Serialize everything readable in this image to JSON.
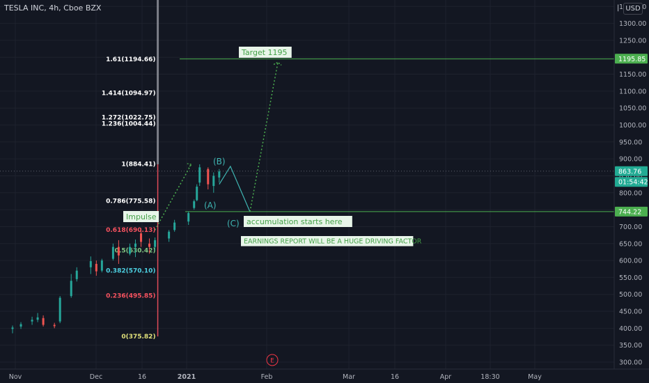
{
  "header": {
    "title": "TESLA INC, 4h, Cboe BZX",
    "currency": "USD",
    "scale_marker": "|"
  },
  "colors": {
    "background": "#131722",
    "grid": "#1e222d",
    "up_candle": "#26a69a",
    "down_candle": "#ef5350",
    "axis_text": "#b2b5be",
    "green_line": "#4caf50",
    "teal_line": "#22ab94",
    "fib_gray": "#787b86",
    "label_green": "#4caf50",
    "badge_gray": "#2a2e39",
    "annotation_cyan": "#3fb5b2"
  },
  "chart_data": {
    "type": "candlestick",
    "title": "TESLA INC, 4h, Cboe BZX",
    "y_axis": {
      "ticks": [
        "1350.00",
        "1300.00",
        "1250.00",
        "1200.00",
        "1150.00",
        "1100.00",
        "1050.00",
        "1000.00",
        "950.00",
        "900.00",
        "850.00",
        "800.00",
        "750.00",
        "700.00",
        "650.00",
        "600.00",
        "550.00",
        "500.00",
        "450.00",
        "400.00",
        "350.00",
        "300.00"
      ],
      "range": [
        291,
        1360
      ]
    },
    "x_axis": {
      "ticks": [
        "Nov",
        "Dec",
        "16",
        "2021",
        "Feb",
        "Mar",
        "16",
        "Apr",
        "18:30",
        "May"
      ],
      "bold_ticks": [
        "2021"
      ]
    },
    "price_labels": [
      {
        "value": 1195.85,
        "text": "1195.85",
        "style": "green"
      },
      {
        "value": 863.76,
        "text": "863.76",
        "style": "teal"
      },
      {
        "value": 832,
        "text": "01:54:42",
        "style": "teal"
      },
      {
        "value": 744.22,
        "text": "744.22",
        "style": "green"
      }
    ],
    "horizontal_lines": [
      {
        "name": "target-line",
        "value": 1195,
        "start_date": "2020-12-31"
      },
      {
        "name": "support-line",
        "value": 744.22,
        "start_date": "2020-12-31"
      },
      {
        "name": "current-price-line",
        "value": 863.76,
        "dotted": true
      }
    ],
    "fibonacci": {
      "date": "2020-12-24",
      "levels": [
        {
          "text": "1.61(1194.66)",
          "value": 1194.66,
          "color": "white"
        },
        {
          "text": "1.414(1094.97)",
          "value": 1094.97,
          "color": "white"
        },
        {
          "text": "1.272(1022.75)",
          "value": 1022.75,
          "color": "white"
        },
        {
          "text": "1.236(1004.44)",
          "value": 1004.44,
          "color": "white"
        },
        {
          "text": "1(884.41)",
          "value": 884.41,
          "color": "white"
        },
        {
          "text": "0.786(775.58)",
          "value": 775.58,
          "color": "white"
        },
        {
          "text": "0.618(690.13)",
          "value": 690.13,
          "color": "red"
        },
        {
          "text": "0.5(630.42)",
          "value": 630.42,
          "color": "green"
        },
        {
          "text": "0.382(570.10)",
          "value": 570.1,
          "color": "teal"
        },
        {
          "text": "0.236(495.85)",
          "value": 495.85,
          "color": "red"
        },
        {
          "text": "0(375.82)",
          "value": 375.82,
          "color": "yellow"
        }
      ]
    },
    "labels_text": {
      "target": "Target 1195",
      "impulse": "Impulse",
      "accumulation": "accumulation starts here",
      "earnings": "EARNINGS REPORT WILL BE A HUGE DRIVING FACTOR",
      "wave_a": "(A)",
      "wave_b": "(B)",
      "wave_c": "(C)",
      "earnings_marker": "E"
    },
    "candles": [
      {
        "date": "2020-11-02",
        "o": 398,
        "h": 408,
        "l": 385,
        "c": 402
      },
      {
        "date": "2020-11-05",
        "o": 405,
        "h": 418,
        "l": 398,
        "c": 412
      },
      {
        "date": "2020-11-09",
        "o": 420,
        "h": 434,
        "l": 410,
        "c": 425
      },
      {
        "date": "2020-11-11",
        "o": 425,
        "h": 445,
        "l": 418,
        "c": 432
      },
      {
        "date": "2020-11-13",
        "o": 430,
        "h": 438,
        "l": 405,
        "c": 410
      },
      {
        "date": "2020-11-17",
        "o": 410,
        "h": 416,
        "l": 400,
        "c": 406
      },
      {
        "date": "2020-11-19",
        "o": 420,
        "h": 495,
        "l": 415,
        "c": 490
      },
      {
        "date": "2020-11-23",
        "o": 495,
        "h": 560,
        "l": 490,
        "c": 540
      },
      {
        "date": "2020-11-25",
        "o": 545,
        "h": 580,
        "l": 538,
        "c": 570
      },
      {
        "date": "2020-11-30",
        "o": 580,
        "h": 612,
        "l": 560,
        "c": 598
      },
      {
        "date": "2020-12-02",
        "o": 590,
        "h": 600,
        "l": 555,
        "c": 568
      },
      {
        "date": "2020-12-04",
        "o": 570,
        "h": 605,
        "l": 565,
        "c": 600
      },
      {
        "date": "2020-12-08",
        "o": 605,
        "h": 650,
        "l": 600,
        "c": 640
      },
      {
        "date": "2020-12-10",
        "o": 640,
        "h": 660,
        "l": 590,
        "c": 615
      },
      {
        "date": "2020-12-14",
        "o": 620,
        "h": 650,
        "l": 615,
        "c": 640
      },
      {
        "date": "2020-12-16",
        "o": 640,
        "h": 662,
        "l": 610,
        "c": 650
      },
      {
        "date": "2020-12-18",
        "o": 680,
        "h": 695,
        "l": 640,
        "c": 655
      },
      {
        "date": "2020-12-21",
        "o": 650,
        "h": 665,
        "l": 620,
        "c": 640
      },
      {
        "date": "2020-12-23",
        "o": 640,
        "h": 668,
        "l": 630,
        "c": 660
      },
      {
        "date": "2020-12-28",
        "o": 665,
        "h": 690,
        "l": 655,
        "c": 685
      },
      {
        "date": "2020-12-30",
        "o": 690,
        "h": 720,
        "l": 685,
        "c": 712
      },
      {
        "date": "2021-01-04",
        "o": 715,
        "h": 745,
        "l": 705,
        "c": 740
      },
      {
        "date": "2021-01-06",
        "o": 755,
        "h": 780,
        "l": 750,
        "c": 775
      },
      {
        "date": "2021-01-07",
        "o": 778,
        "h": 825,
        "l": 775,
        "c": 818
      },
      {
        "date": "2021-01-08",
        "o": 830,
        "h": 884,
        "l": 820,
        "c": 875
      },
      {
        "date": "2021-01-11",
        "o": 870,
        "h": 875,
        "l": 810,
        "c": 825
      },
      {
        "date": "2021-01-13",
        "o": 820,
        "h": 860,
        "l": 800,
        "c": 850
      },
      {
        "date": "2021-01-15",
        "o": 845,
        "h": 870,
        "l": 830,
        "c": 863
      }
    ],
    "projection_dotted": [
      {
        "date": "2020-12-23",
        "value": 690
      },
      {
        "date": "2021-01-05",
        "value": 884
      }
    ],
    "projection_abc": [
      {
        "date": "2021-01-15",
        "value": 825
      },
      {
        "date": "2021-01-19",
        "value": 878
      },
      {
        "date": "2021-01-26",
        "value": 744
      }
    ],
    "projection_target": [
      {
        "date": "2021-01-26",
        "value": 744
      },
      {
        "date": "2021-02-05",
        "value": 1185
      }
    ]
  }
}
